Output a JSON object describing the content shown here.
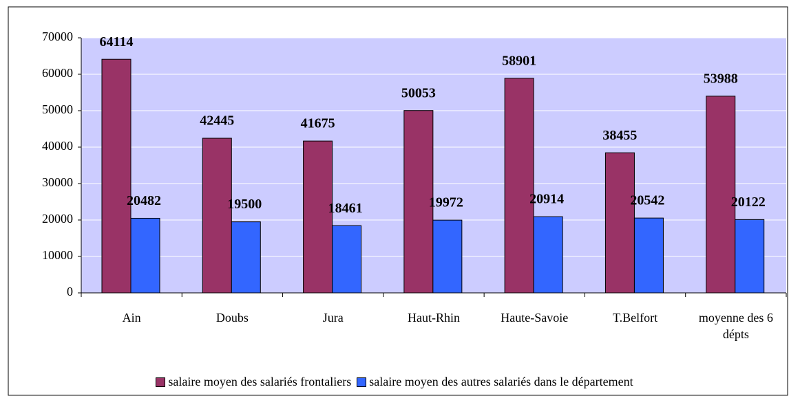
{
  "chart_data": {
    "type": "bar",
    "categories": [
      "Ain",
      "Doubs",
      "Jura",
      "Haut-Rhin",
      "Haute-Savoie",
      "T.Belfort",
      "moyenne des 6 dépts"
    ],
    "series": [
      {
        "name": "salaire moyen des salariés frontaliers",
        "color": "#993366",
        "values": [
          64114,
          42445,
          41675,
          50053,
          58901,
          38455,
          53988
        ]
      },
      {
        "name": "salaire moyen des autres salariés dans le département",
        "color": "#3366ff",
        "values": [
          20482,
          19500,
          18461,
          19972,
          20914,
          20542,
          20122
        ]
      }
    ],
    "ylim": [
      0,
      70000
    ],
    "yticks": [
      0,
      10000,
      20000,
      30000,
      40000,
      50000,
      60000,
      70000
    ],
    "grid": true,
    "plot_background": "#ccccff",
    "legend": "bottom"
  }
}
